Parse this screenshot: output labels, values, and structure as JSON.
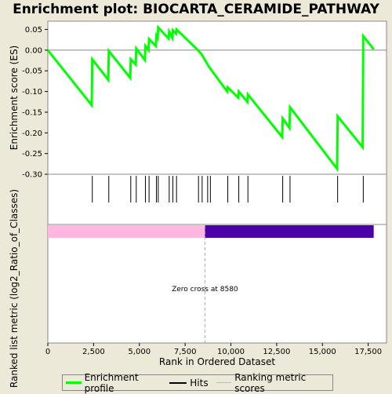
{
  "chart_data": {
    "type": "line",
    "title": "Enrichment plot: BIOCARTA_CERAMIDE_PATHWAY",
    "xlabel": "Rank in Ordered Dataset",
    "ylabel_top": "Enrichment score (ES)",
    "ylabel_bottom": "Ranked list metric (log2_Ratio_of_Classes)",
    "xlim": [
      0,
      18500
    ],
    "ylim": [
      -0.3,
      0.07
    ],
    "x_ticks": [
      0,
      2500,
      5000,
      7500,
      10000,
      12500,
      15000,
      17500
    ],
    "x_tick_labels": [
      "0",
      "2,500",
      "5,000",
      "7,500",
      "10,000",
      "12,500",
      "15,000",
      "17,500"
    ],
    "y_ticks": [
      0.05,
      0.0,
      -0.05,
      -0.1,
      -0.15,
      -0.2,
      -0.25,
      -0.3
    ],
    "y_tick_labels": [
      "0.05",
      "0.00",
      "-0.05",
      "-0.10",
      "-0.15",
      "-0.20",
      "-0.25",
      "-0.30"
    ],
    "series": [
      {
        "name": "Enrichment profile",
        "color": "#00ff00",
        "x": [
          0,
          2400,
          2430,
          3300,
          3330,
          4500,
          4530,
          4800,
          4830,
          5300,
          5330,
          5500,
          5530,
          5900,
          5930,
          6000,
          6030,
          6600,
          6630,
          6800,
          6830,
          7000,
          7030,
          8200,
          8400,
          8800,
          9800,
          9830,
          10400,
          10430,
          10900,
          10930,
          12800,
          12830,
          13200,
          13230,
          15800,
          15830,
          17200,
          17230,
          17800
        ],
        "y": [
          0.0,
          -0.133,
          -0.022,
          -0.072,
          -0.002,
          -0.067,
          -0.022,
          -0.035,
          0.004,
          -0.024,
          0.01,
          0.0,
          0.027,
          0.01,
          0.035,
          0.03,
          0.055,
          0.028,
          0.045,
          0.03,
          0.048,
          0.04,
          0.05,
          0.0,
          -0.01,
          -0.04,
          -0.1,
          -0.09,
          -0.115,
          -0.1,
          -0.125,
          -0.107,
          -0.21,
          -0.165,
          -0.188,
          -0.138,
          -0.287,
          -0.16,
          -0.235,
          0.034,
          0.002
        ]
      }
    ],
    "hits": [
      2430,
      3330,
      4530,
      4830,
      5330,
      5530,
      5930,
      6030,
      6630,
      6830,
      7030,
      8230,
      8430,
      8730,
      8880,
      9830,
      10430,
      10930,
      12830,
      13230,
      15830,
      17230
    ],
    "ranking_metric": {
      "positive_color": "#ffb6e0",
      "negative_color": "#4b00a8",
      "zero_cross": 8580,
      "start": 0,
      "end": 17800
    },
    "annotation": "Zero cross at 8580",
    "legend": [
      {
        "label": "Enrichment profile",
        "color": "#00ff00"
      },
      {
        "label": "Hits",
        "color": "#000000"
      },
      {
        "label": "Ranking metric scores",
        "color": "#bbbbbb"
      }
    ]
  }
}
